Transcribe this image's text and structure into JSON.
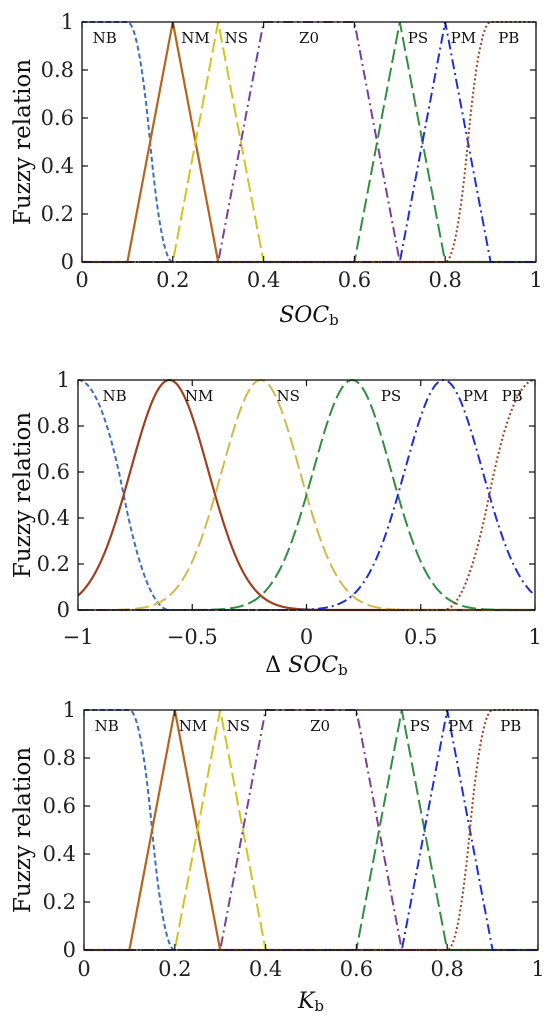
{
  "chart_data": [
    {
      "type": "line",
      "ylabel": "Fuzzy relation",
      "xlabel": "SOC",
      "xlabel_sub": "b",
      "xlabel_prefix": "",
      "xlim": [
        0,
        1
      ],
      "ylim": [
        0,
        1
      ],
      "xticks": [
        "0",
        "0.2",
        "0.4",
        "0.6",
        "0.8",
        "1"
      ],
      "yticks": [
        "0",
        "0.2",
        "0.4",
        "0.6",
        "0.8",
        "1"
      ],
      "series": [
        {
          "name": "NB",
          "shape": "zmf",
          "params": [
            0.1,
            0.2
          ],
          "color": "#3a6fc4",
          "dash": "short"
        },
        {
          "name": "NM",
          "shape": "trimf",
          "params": [
            0.1,
            0.2,
            0.3
          ],
          "color": "#b5651d",
          "dash": "solid"
        },
        {
          "name": "NS",
          "shape": "trimf",
          "params": [
            0.2,
            0.3,
            0.4
          ],
          "color": "#d4c21a",
          "dash": "long"
        },
        {
          "name": "Z0",
          "shape": "trapmf",
          "params": [
            0.3,
            0.4,
            0.6,
            0.7
          ],
          "color": "#7a3d9c",
          "dash": "dashdot"
        },
        {
          "name": "PS",
          "shape": "trimf",
          "params": [
            0.6,
            0.7,
            0.8
          ],
          "color": "#2f8f3f",
          "dash": "long"
        },
        {
          "name": "PM",
          "shape": "trimf",
          "params": [
            0.7,
            0.8,
            0.9
          ],
          "color": "#1e2fd6",
          "dash": "dashdot"
        },
        {
          "name": "PB",
          "shape": "smf",
          "params": [
            0.8,
            0.9
          ],
          "color": "#a0401e",
          "dash": "dot"
        }
      ],
      "labels": [
        {
          "text": "NB",
          "x": 0.05
        },
        {
          "text": "NM",
          "x": 0.25
        },
        {
          "text": "NS",
          "x": 0.34
        },
        {
          "text": "Z0",
          "x": 0.5
        },
        {
          "text": "PS",
          "x": 0.74
        },
        {
          "text": "PM",
          "x": 0.84
        },
        {
          "text": "PB",
          "x": 0.94
        }
      ]
    },
    {
      "type": "line",
      "ylabel": "Fuzzy relation",
      "xlabel": "SOC",
      "xlabel_sub": "b",
      "xlabel_prefix": "Δ",
      "xlim": [
        -1,
        1
      ],
      "ylim": [
        0,
        1
      ],
      "xticks": [
        "−1",
        "−0.5",
        "0",
        "0.5",
        "1"
      ],
      "yticks": [
        "0",
        "0.2",
        "0.4",
        "0.6",
        "0.8",
        "1"
      ],
      "series": [
        {
          "name": "NB",
          "shape": "zmf",
          "params": [
            -1,
            -0.6
          ],
          "color": "#3a6fc4",
          "dash": "short"
        },
        {
          "name": "NM",
          "shape": "gaussmf",
          "params": [
            -0.6,
            0.17
          ],
          "color": "#a0401e",
          "dash": "solid"
        },
        {
          "name": "NS",
          "shape": "gaussmf",
          "params": [
            -0.2,
            0.17
          ],
          "color": "#d4b84a",
          "dash": "long"
        },
        {
          "name": "PS",
          "shape": "gaussmf",
          "params": [
            0.2,
            0.17
          ],
          "color": "#2f8f3f",
          "dash": "long"
        },
        {
          "name": "PM",
          "shape": "gaussmf",
          "params": [
            0.6,
            0.17
          ],
          "color": "#1e2fd6",
          "dash": "dashdot"
        },
        {
          "name": "PB",
          "shape": "smf",
          "params": [
            0.6,
            1
          ],
          "color": "#a0401e",
          "dash": "dot"
        }
      ],
      "labels": [
        {
          "text": "NB",
          "x": -0.84
        },
        {
          "text": "NM",
          "x": -0.47
        },
        {
          "text": "NS",
          "x": -0.08
        },
        {
          "text": "PS",
          "x": 0.37
        },
        {
          "text": "PM",
          "x": 0.74
        },
        {
          "text": "PB",
          "x": 0.9
        }
      ]
    },
    {
      "type": "line",
      "ylabel": "Fuzzy relation",
      "xlabel": "K",
      "xlabel_sub": "b",
      "xlabel_prefix": "",
      "xlim": [
        0,
        1
      ],
      "ylim": [
        0,
        1
      ],
      "xticks": [
        "0",
        "0.2",
        "0.4",
        "0.6",
        "0.8",
        "1"
      ],
      "yticks": [
        "0",
        "0.2",
        "0.4",
        "0.6",
        "0.8",
        "1"
      ],
      "series": [
        {
          "name": "NB",
          "shape": "zmf",
          "params": [
            0.1,
            0.2
          ],
          "color": "#3a6fc4",
          "dash": "short"
        },
        {
          "name": "NM",
          "shape": "trimf",
          "params": [
            0.1,
            0.2,
            0.3
          ],
          "color": "#b5651d",
          "dash": "solid"
        },
        {
          "name": "NS",
          "shape": "trimf",
          "params": [
            0.2,
            0.3,
            0.4
          ],
          "color": "#d4c21a",
          "dash": "long"
        },
        {
          "name": "Z0",
          "shape": "trapmf",
          "params": [
            0.3,
            0.4,
            0.6,
            0.7
          ],
          "color": "#7a3d9c",
          "dash": "dashdot"
        },
        {
          "name": "PS",
          "shape": "trimf",
          "params": [
            0.6,
            0.7,
            0.8
          ],
          "color": "#2f8f3f",
          "dash": "long"
        },
        {
          "name": "PM",
          "shape": "trimf",
          "params": [
            0.7,
            0.8,
            0.9
          ],
          "color": "#1e2fd6",
          "dash": "dashdot"
        },
        {
          "name": "PB",
          "shape": "smf",
          "params": [
            0.8,
            0.9
          ],
          "color": "#a0401e",
          "dash": "dot"
        }
      ],
      "labels": [
        {
          "text": "NB",
          "x": 0.05
        },
        {
          "text": "NM",
          "x": 0.24
        },
        {
          "text": "NS",
          "x": 0.34
        },
        {
          "text": "Z0",
          "x": 0.52
        },
        {
          "text": "PS",
          "x": 0.74
        },
        {
          "text": "PM",
          "x": 0.83
        },
        {
          "text": "PB",
          "x": 0.94
        }
      ]
    }
  ]
}
